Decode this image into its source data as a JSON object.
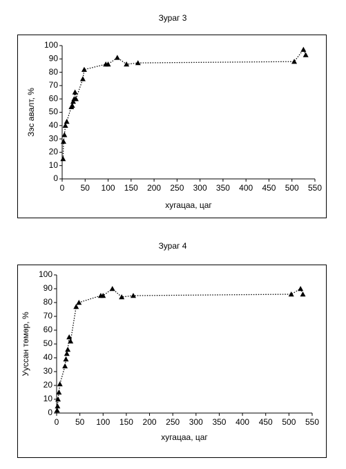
{
  "chart_data": [
    {
      "type": "scatter",
      "title": "Зураг 3",
      "x_label": "хугацаа, цаг",
      "y_label": "Зэс авалт, %",
      "x": [
        2,
        3,
        5,
        7,
        10,
        20,
        22,
        24,
        26,
        28,
        30,
        45,
        48,
        95,
        100,
        120,
        140,
        165,
        505,
        525,
        530
      ],
      "values": [
        15,
        28,
        33,
        40,
        43,
        54,
        55,
        58,
        60,
        65,
        60,
        75,
        82,
        86,
        86,
        91,
        86,
        87,
        88,
        97,
        93
      ],
      "xlim": [
        0,
        550
      ],
      "ylim": [
        0,
        100
      ],
      "xticks": [
        0,
        50,
        100,
        150,
        200,
        250,
        300,
        350,
        400,
        450,
        500,
        550
      ],
      "yticks": [
        0,
        10,
        20,
        30,
        40,
        50,
        60,
        70,
        80,
        90,
        100
      ],
      "color": "#000000",
      "line_style": "dotted",
      "marker": "triangle",
      "grid": false
    },
    {
      "type": "scatter",
      "title": "Зураг 4",
      "x_label": "хугацаа, цаг",
      "y_label": "Ууссан төмөр, %",
      "x": [
        1,
        2,
        3,
        5,
        7,
        18,
        20,
        22,
        24,
        27,
        30,
        42,
        48,
        95,
        100,
        120,
        140,
        165,
        505,
        525,
        530
      ],
      "values": [
        2,
        5,
        10,
        15,
        21,
        34,
        39,
        43,
        46,
        55,
        52,
        77,
        80,
        85,
        85,
        90,
        84,
        85,
        86,
        90,
        86
      ],
      "xlim": [
        0,
        550
      ],
      "ylim": [
        0,
        100
      ],
      "xticks": [
        0,
        50,
        100,
        150,
        200,
        250,
        300,
        350,
        400,
        450,
        500,
        550
      ],
      "yticks": [
        0,
        10,
        20,
        30,
        40,
        50,
        60,
        70,
        80,
        90,
        100
      ],
      "color": "#000000",
      "line_style": "dotted",
      "marker": "triangle",
      "grid": false
    }
  ]
}
